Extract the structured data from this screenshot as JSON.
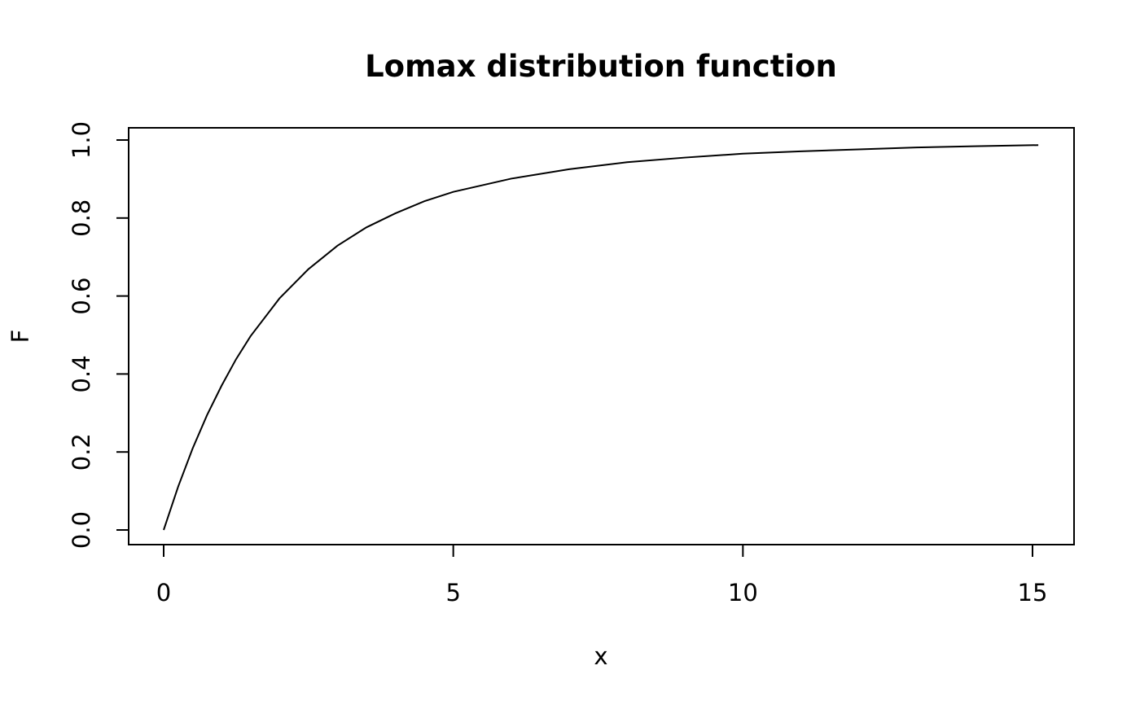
{
  "chart_data": {
    "type": "line",
    "title": "Lomax distribution function",
    "xlabel": "x",
    "ylabel": "F",
    "xlim": [
      0,
      15.1
    ],
    "ylim": [
      0,
      0.99
    ],
    "x_ticks": [
      0,
      5,
      10,
      15
    ],
    "x_tick_labels": [
      "0",
      "5",
      "10",
      "15"
    ],
    "y_ticks": [
      0,
      0.2,
      0.4,
      0.6,
      0.8,
      1.0
    ],
    "y_tick_labels": [
      "0.0",
      "0.2",
      "0.4",
      "0.6",
      "0.8",
      "1.0"
    ],
    "grid": false,
    "series": [
      {
        "x": [
          0,
          0.25,
          0.5,
          0.75,
          1,
          1.25,
          1.5,
          2,
          2.5,
          3,
          3.5,
          4,
          4.5,
          5,
          6,
          7,
          8,
          9,
          10,
          11,
          12,
          13,
          14,
          15.1
        ],
        "y": [
          0,
          0.111,
          0.209,
          0.295,
          0.37,
          0.438,
          0.497,
          0.594,
          0.669,
          0.729,
          0.776,
          0.812,
          0.843,
          0.867,
          0.901,
          0.925,
          0.943,
          0.955,
          0.965,
          0.971,
          0.976,
          0.981,
          0.984,
          0.987
        ]
      }
    ]
  }
}
